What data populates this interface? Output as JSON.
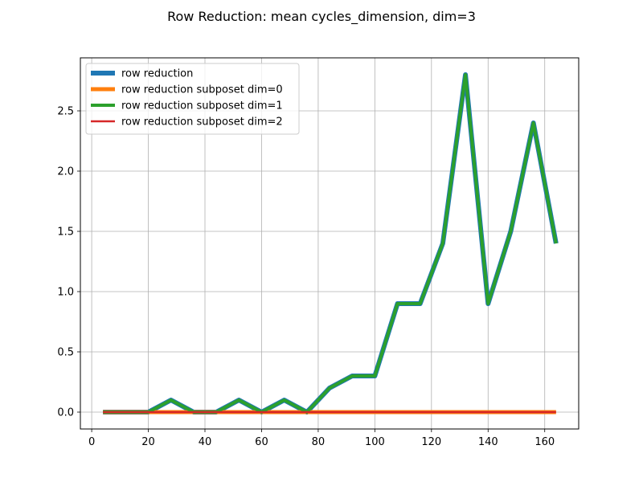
{
  "chart_data": {
    "type": "line",
    "title": "Row Reduction: mean cycles_dimension, dim=3",
    "xlabel": "",
    "ylabel": "",
    "xlim": [
      -4.0,
      172.0
    ],
    "ylim": [
      -0.14,
      2.94
    ],
    "xticks": [
      0,
      20,
      40,
      60,
      80,
      100,
      120,
      140,
      160
    ],
    "yticks": [
      0.0,
      0.5,
      1.0,
      1.5,
      2.0,
      2.5
    ],
    "xtick_labels": [
      "0",
      "20",
      "40",
      "60",
      "80",
      "100",
      "120",
      "140",
      "160"
    ],
    "ytick_labels": [
      "0.0",
      "0.5",
      "1.0",
      "1.5",
      "2.0",
      "2.5"
    ],
    "grid": true,
    "legend_position": "upper-left",
    "x": [
      4,
      12,
      20,
      28,
      36,
      44,
      52,
      60,
      68,
      76,
      84,
      92,
      100,
      108,
      116,
      124,
      132,
      140,
      148,
      156,
      164
    ],
    "series": [
      {
        "name": "row reduction",
        "color": "#1f77b4",
        "values": [
          0,
          0,
          0,
          0.1,
          0,
          0,
          0.1,
          0,
          0.1,
          0,
          0.2,
          0.3,
          0.3,
          0.9,
          0.9,
          1.4,
          2.8,
          0.9,
          1.5,
          2.4,
          1.4
        ]
      },
      {
        "name": "row reduction subposet dim=0",
        "color": "#ff7f0e",
        "values": [
          0,
          0,
          0,
          0,
          0,
          0,
          0,
          0,
          0,
          0,
          0,
          0,
          0,
          0,
          0,
          0,
          0,
          0,
          0,
          0,
          0
        ]
      },
      {
        "name": "row reduction subposet dim=1",
        "color": "#2ca02c",
        "values": [
          0,
          0,
          0,
          0.1,
          0,
          0,
          0.1,
          0,
          0.1,
          0,
          0.2,
          0.3,
          0.3,
          0.9,
          0.9,
          1.4,
          2.8,
          0.9,
          1.5,
          2.4,
          1.4
        ]
      },
      {
        "name": "row reduction subposet dim=2",
        "color": "#d62728",
        "values": [
          0,
          0,
          0,
          0,
          0,
          0,
          0,
          0,
          0,
          0,
          0,
          0,
          0,
          0,
          0,
          0,
          0,
          0,
          0,
          0,
          0
        ]
      }
    ]
  }
}
